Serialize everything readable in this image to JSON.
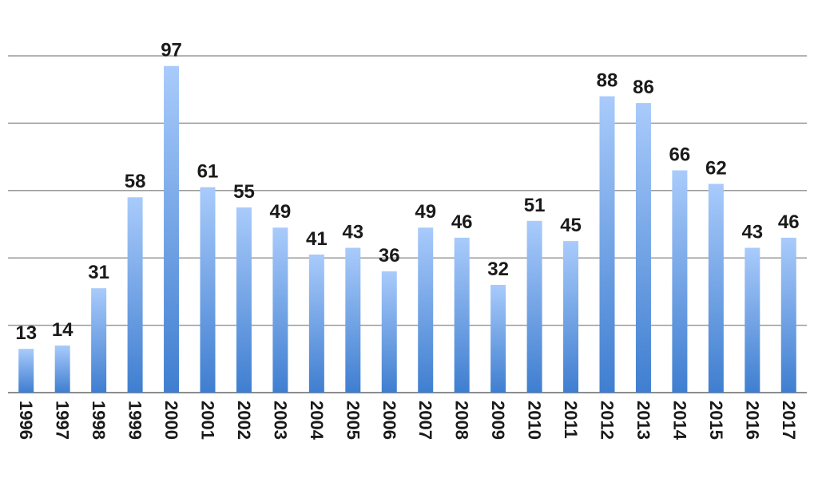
{
  "chart_data": {
    "type": "bar",
    "title": "",
    "xlabel": "",
    "ylabel": "",
    "categories": [
      "1996",
      "1997",
      "1998",
      "1999",
      "2000",
      "2001",
      "2002",
      "2003",
      "2004",
      "2005",
      "2006",
      "2007",
      "2008",
      "2009",
      "2010",
      "2011",
      "2012",
      "2013",
      "2014",
      "2015",
      "2016",
      "2017"
    ],
    "values": [
      13,
      14,
      31,
      58,
      97,
      61,
      55,
      49,
      41,
      43,
      36,
      49,
      46,
      32,
      51,
      45,
      88,
      86,
      66,
      62,
      43,
      46
    ],
    "ylim": [
      0,
      100
    ],
    "ytick_step": 20,
    "y_tick_labels_visible": false,
    "data_labels_visible": true,
    "grid": true,
    "legend": "none",
    "bar_gradient": {
      "top": "#a9cbfb",
      "bottom": "#3f7ed0"
    }
  }
}
